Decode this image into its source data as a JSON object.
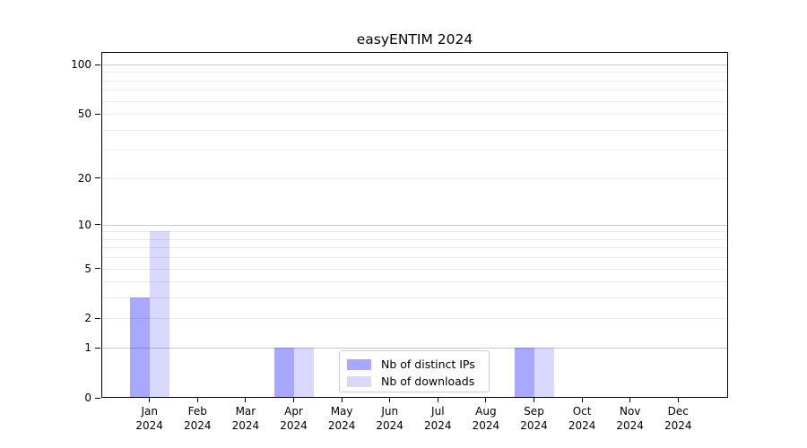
{
  "chart_data": {
    "type": "bar",
    "title": "easyENTIM 2024",
    "categories": [
      "Jan 2024",
      "Feb 2024",
      "Mar 2024",
      "Apr 2024",
      "May 2024",
      "Jun 2024",
      "Jul 2024",
      "Aug 2024",
      "Sep 2024",
      "Oct 2024",
      "Nov 2024",
      "Dec 2024"
    ],
    "series": [
      {
        "name": "Nb of distinct IPs",
        "color": "rgba(0,0,255,0.34)",
        "values": [
          3,
          0,
          0,
          1,
          0,
          0,
          0,
          0,
          1,
          0,
          0,
          0
        ]
      },
      {
        "name": "Nb of downloads",
        "color": "rgba(0,0,255,0.15)",
        "values": [
          9,
          0,
          0,
          1,
          0,
          0,
          0,
          0,
          1,
          0,
          0,
          0
        ]
      }
    ],
    "xlabel": "",
    "ylabel": "",
    "yscale": "log1p",
    "yticks": [
      0,
      1,
      2,
      5,
      10,
      20,
      50,
      100
    ],
    "ylim": [
      0,
      120
    ],
    "grid": "horizontal",
    "legend_position": "bottom-center-inside"
  }
}
